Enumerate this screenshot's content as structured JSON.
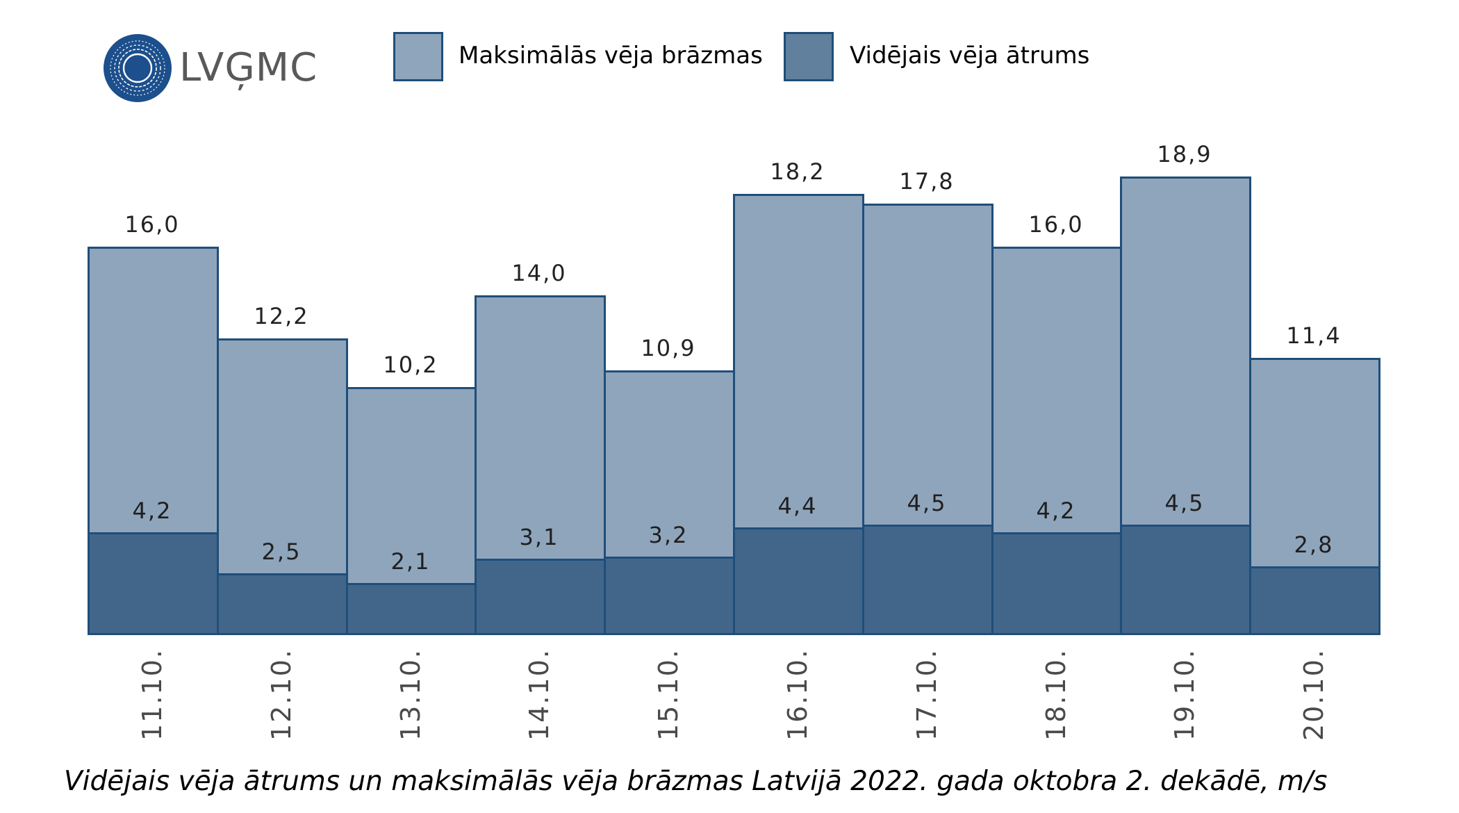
{
  "logo": {
    "text": "LVĢMC",
    "color": "#1c4f8c"
  },
  "legend": [
    {
      "label": "Maksimālās vēja brāzmas",
      "color": "#8fa5bc"
    },
    {
      "label": "Vidējais vēja ātrums",
      "color": "#60809e"
    }
  ],
  "caption": "Vidējais vēja ātrums un maksimālās vēja brāzmas Latvijā 2022. gada oktobra 2. dekādē, m/s",
  "labels": {
    "max": [
      "16,0",
      "12,2",
      "10,2",
      "14,0",
      "10,9",
      "18,2",
      "17,8",
      "16,0",
      "18,9",
      "11,4"
    ],
    "avg": [
      "4,2",
      "2,5",
      "2,1",
      "3,1",
      "3,2",
      "4,4",
      "4,5",
      "4,2",
      "4,5",
      "2,8"
    ],
    "dates": [
      "11.10.",
      "12.10.",
      "13.10.",
      "14.10.",
      "15.10.",
      "16.10.",
      "17.10.",
      "18.10.",
      "19.10.",
      "20.10."
    ]
  },
  "chart_data": {
    "type": "bar",
    "title": "Vidējais vēja ātrums un maksimālās vēja brāzmas Latvijā 2022. gada oktobra 2. dekādē, m/s",
    "categories": [
      "11.10.",
      "12.10.",
      "13.10.",
      "14.10.",
      "15.10.",
      "16.10.",
      "17.10.",
      "18.10.",
      "19.10.",
      "20.10."
    ],
    "series": [
      {
        "name": "Maksimālās vēja brāzmas",
        "values": [
          16.0,
          12.2,
          10.2,
          14.0,
          10.9,
          18.2,
          17.8,
          16.0,
          18.9,
          11.4
        ],
        "color": "#8fa5bc"
      },
      {
        "name": "Vidējais vēja ātrums",
        "values": [
          4.2,
          2.5,
          2.1,
          3.1,
          3.2,
          4.4,
          4.5,
          4.2,
          4.5,
          2.8
        ],
        "color": "#426689"
      }
    ],
    "xlabel": "",
    "ylabel": "m/s",
    "ylim": [
      0,
      20
    ],
    "grid": false,
    "legend_position": "top",
    "overlay": true,
    "data_labels": true,
    "unit": "m/s"
  }
}
